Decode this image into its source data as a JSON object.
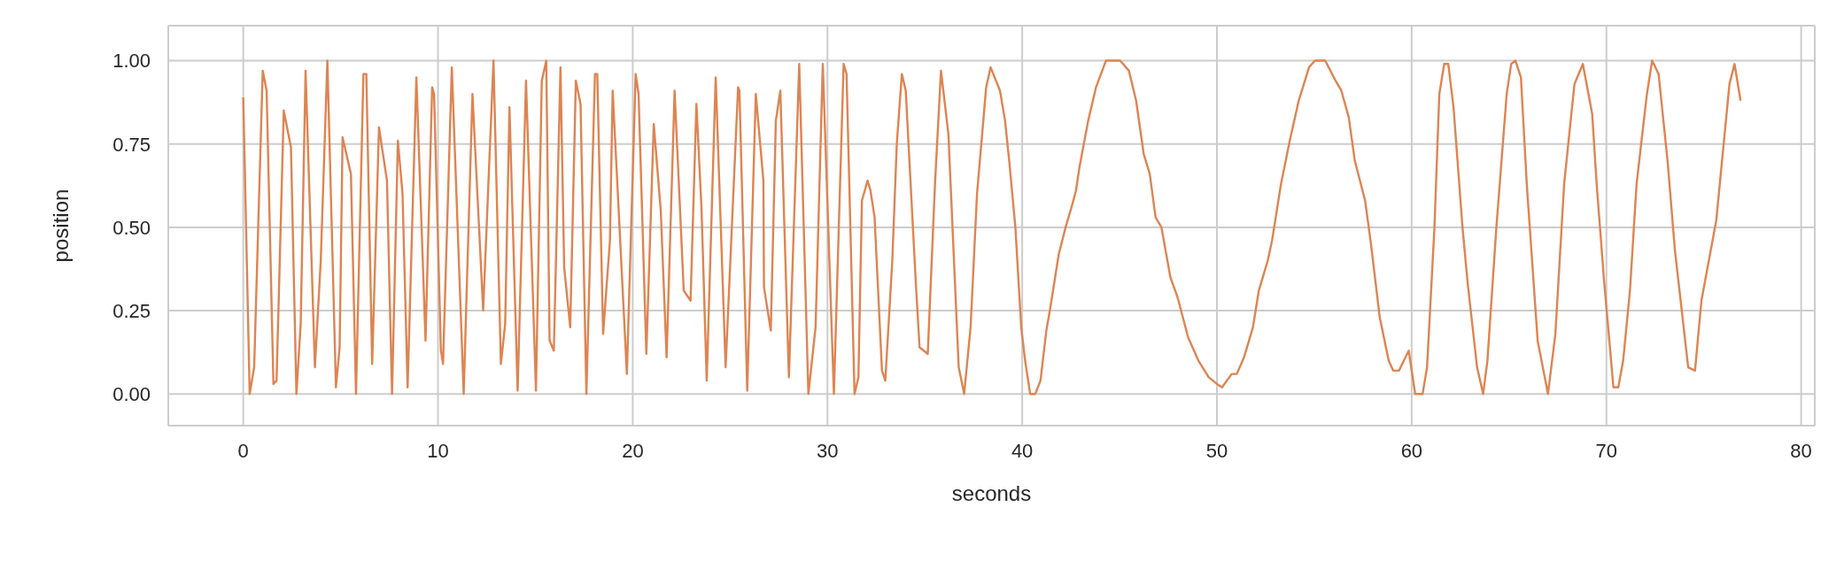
{
  "chart_data": {
    "type": "line",
    "xlabel": "seconds",
    "ylabel": "position",
    "color": "#dd8452",
    "x": [
      0,
      0.33,
      0.56,
      1.0,
      1.2,
      1.55,
      1.71,
      2.08,
      2.45,
      2.73,
      2.95,
      3.2,
      3.68,
      3.98,
      4.32,
      4.76,
      4.95,
      5.1,
      5.53,
      5.79,
      6.17,
      6.32,
      6.62,
      6.97,
      7.38,
      7.64,
      7.94,
      8.18,
      8.44,
      8.89,
      9.36,
      9.7,
      9.8,
      10.15,
      10.26,
      10.71,
      11.32,
      11.77,
      12.32,
      12.85,
      13.23,
      13.45,
      13.67,
      14.09,
      14.52,
      15.03,
      15.33,
      15.56,
      15.73,
      15.95,
      16.29,
      16.48,
      16.79,
      17.08,
      17.32,
      17.62,
      18.06,
      18.18,
      18.48,
      18.83,
      18.97,
      19.7,
      20.15,
      20.3,
      20.7,
      21.08,
      21.44,
      21.74,
      22.15,
      22.62,
      22.97,
      23.27,
      23.53,
      23.8,
      24.26,
      24.77,
      25.41,
      25.48,
      25.88,
      26.32,
      26.71,
      26.74,
      27.09,
      27.35,
      27.58,
      28.02,
      28.55,
      29.02,
      29.39,
      29.76,
      30.33,
      30.83,
      30.98,
      31.39,
      31.59,
      31.77,
      32.06,
      32.21,
      32.42,
      32.8,
      32.97,
      33.33,
      33.56,
      33.82,
      34.02,
      34.55,
      34.73,
      35.15,
      35.53,
      35.83,
      36.21,
      36.74,
      37.02,
      37.35,
      37.68,
      38.15,
      38.38,
      38.86,
      39.12,
      39.35,
      39.65,
      39.95,
      40.15,
      40.41,
      40.67,
      40.94,
      41.24,
      41.42,
      41.88,
      42.23,
      42.58,
      42.76,
      42.94,
      43.39,
      43.79,
      44.3,
      45.03,
      45.48,
      45.85,
      46.24,
      46.55,
      46.85,
      47.15,
      47.61,
      47.98,
      48.52,
      49.05,
      49.58,
      50.0,
      50.26,
      50.76,
      51.02,
      51.39,
      51.85,
      52.15,
      52.61,
      52.83,
      53.29,
      53.74,
      54.2,
      54.73,
      55.03,
      55.56,
      56.09,
      56.39,
      56.77,
      57.08,
      57.61,
      57.91,
      58.36,
      58.82,
      59.05,
      59.35,
      59.85,
      60.18,
      60.56,
      60.79,
      61.17,
      61.42,
      61.67,
      61.88,
      62.15,
      62.61,
      62.88,
      63.36,
      63.67,
      63.89,
      64.35,
      64.88,
      65.11,
      65.33,
      65.61,
      65.91,
      66.47,
      67.0,
      67.38,
      67.83,
      68.36,
      68.79,
      69.27,
      69.5,
      69.88,
      70.36,
      70.61,
      70.86,
      71.21,
      71.55,
      72.08,
      72.35,
      72.68,
      73.14,
      73.52,
      74.2,
      74.55,
      74.88,
      75.64,
      76.32,
      76.58,
      76.89
    ],
    "values": [
      0.89,
      0,
      0.08,
      0.97,
      0.91,
      0.03,
      0.04,
      0.85,
      0.74,
      0,
      0.21,
      0.97,
      0.08,
      0.4,
      1.0,
      0.02,
      0.14,
      0.77,
      0.66,
      0,
      0.96,
      0.96,
      0.09,
      0.8,
      0.64,
      0,
      0.76,
      0.6,
      0.02,
      0.95,
      0.16,
      0.92,
      0.9,
      0.13,
      0.09,
      0.98,
      0,
      0.9,
      0.25,
      1.0,
      0.09,
      0.21,
      0.86,
      0.01,
      0.94,
      0.01,
      0.94,
      1.0,
      0.16,
      0.13,
      0.98,
      0.38,
      0.2,
      0.94,
      0.87,
      0,
      0.96,
      0.96,
      0.18,
      0.46,
      0.91,
      0.06,
      0.96,
      0.9,
      0.12,
      0.81,
      0.55,
      0.11,
      0.91,
      0.31,
      0.28,
      0.87,
      0.56,
      0.04,
      0.95,
      0.08,
      0.92,
      0.91,
      0.01,
      0.9,
      0.64,
      0.32,
      0.19,
      0.82,
      0.91,
      0.05,
      0.99,
      0,
      0.2,
      0.99,
      0,
      0.99,
      0.96,
      0,
      0.05,
      0.58,
      0.64,
      0.61,
      0.53,
      0.07,
      0.04,
      0.4,
      0.75,
      0.96,
      0.91,
      0.32,
      0.14,
      0.12,
      0.64,
      0.97,
      0.78,
      0.08,
      0,
      0.2,
      0.6,
      0.92,
      0.98,
      0.91,
      0.82,
      0.69,
      0.5,
      0.2,
      0.1,
      0,
      0,
      0.04,
      0.19,
      0.25,
      0.42,
      0.5,
      0.57,
      0.61,
      0.68,
      0.82,
      0.92,
      1.0,
      1.0,
      0.97,
      0.88,
      0.72,
      0.66,
      0.53,
      0.5,
      0.35,
      0.29,
      0.17,
      0.1,
      0.05,
      0.03,
      0.02,
      0.06,
      0.06,
      0.11,
      0.2,
      0.31,
      0.4,
      0.46,
      0.63,
      0.76,
      0.88,
      0.98,
      1.0,
      1.0,
      0.94,
      0.91,
      0.83,
      0.7,
      0.58,
      0.45,
      0.23,
      0.1,
      0.07,
      0.07,
      0.13,
      0,
      0,
      0.08,
      0.5,
      0.9,
      0.99,
      0.99,
      0.86,
      0.5,
      0.33,
      0.08,
      0,
      0.1,
      0.5,
      0.9,
      0.99,
      1.0,
      0.95,
      0.63,
      0.16,
      0,
      0.18,
      0.63,
      0.93,
      0.99,
      0.84,
      0.63,
      0.34,
      0.02,
      0.02,
      0.1,
      0.31,
      0.63,
      0.9,
      1.0,
      0.96,
      0.7,
      0.43,
      0.08,
      0.07,
      0.28,
      0.52,
      0.93,
      0.99,
      0.88
    ],
    "xlim": [
      -3.85,
      80.7
    ],
    "ylim": [
      -0.095,
      1.105
    ],
    "xticks": [
      0,
      10,
      20,
      30,
      40,
      50,
      60,
      70,
      80
    ],
    "yticks": [
      {
        "value": 0,
        "label": "0.00"
      },
      {
        "value": 0.25,
        "label": "0.25"
      },
      {
        "value": 0.5,
        "label": "0.50"
      },
      {
        "value": 0.75,
        "label": "0.75"
      },
      {
        "value": 1,
        "label": "1.00"
      }
    ],
    "grid": true
  }
}
